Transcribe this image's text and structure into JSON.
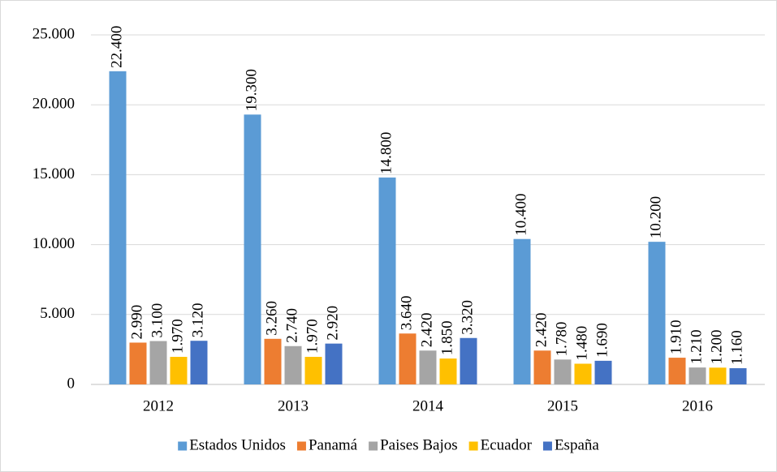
{
  "chart_data": {
    "type": "bar",
    "categories": [
      "2012",
      "2013",
      "2014",
      "2015",
      "2016"
    ],
    "series": [
      {
        "name": "Estados Unidos",
        "color": "#5b9bd5",
        "values": [
          22400,
          19300,
          14800,
          10400,
          10200
        ],
        "value_labels": [
          "22.400",
          "19.300",
          "14.800",
          "10.400",
          "10.200"
        ]
      },
      {
        "name": "Panamá",
        "color": "#ed7d31",
        "values": [
          2990,
          3260,
          3640,
          2420,
          1910
        ],
        "value_labels": [
          "2.990",
          "3.260",
          "3.640",
          "2.420",
          "1.910"
        ]
      },
      {
        "name": "Paises Bajos",
        "color": "#a5a5a5",
        "values": [
          3100,
          2740,
          2420,
          1780,
          1210
        ],
        "value_labels": [
          "3.100",
          "2.740",
          "2.420",
          "1.780",
          "1.210"
        ]
      },
      {
        "name": "Ecuador",
        "color": "#ffc000",
        "values": [
          1970,
          1970,
          1850,
          1480,
          1200
        ],
        "value_labels": [
          "1.970",
          "1.970",
          "1.850",
          "1.480",
          "1.200"
        ]
      },
      {
        "name": "España",
        "color": "#4472c4",
        "values": [
          3120,
          2920,
          3320,
          1690,
          1160
        ],
        "value_labels": [
          "3.120",
          "2.920",
          "3.320",
          "1.690",
          "1.160"
        ]
      }
    ],
    "ylim": [
      0,
      25000
    ],
    "yticks": [
      0,
      {
        "value": 5000,
        "label": "5.000"
      },
      {
        "value": 10000,
        "label": "10.000"
      },
      {
        "value": 15000,
        "label": "15.000"
      },
      {
        "value": 20000,
        "label": "20.000"
      },
      {
        "value": 25000,
        "label": "25.000"
      }
    ],
    "grid": true,
    "legend": "bottom"
  }
}
